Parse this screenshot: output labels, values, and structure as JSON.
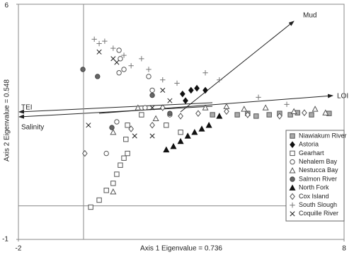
{
  "chart_data": {
    "type": "scatter",
    "x_label": "Axis 1 Eigenvalue = 0.736",
    "y_label": "Axis 2 Eigenvalue = 0.548",
    "xlim": [
      -2,
      8
    ],
    "ylim": [
      -1,
      6
    ],
    "xticks": [
      -2,
      8
    ],
    "yticks": [
      -1,
      6
    ],
    "zero_lines": true,
    "legend": "right",
    "annotations": [
      "Mud",
      "LOI",
      "TEI",
      "Salinity"
    ],
    "series": [
      {
        "name": "Niawiakum River",
        "marker": "square",
        "color": "#555",
        "fill": "#aaa",
        "x": [
          3.96,
          4.72,
          5.04,
          5.3,
          5.7,
          6.02,
          6.35,
          6.57,
          7.0,
          7.54
        ],
        "values": [
          2.71,
          2.71,
          2.75,
          2.67,
          2.71,
          2.75,
          2.71,
          2.77,
          2.71,
          2.75
        ]
      },
      {
        "name": "Astoria",
        "marker": "diamond",
        "color": "#111",
        "fill": "#111",
        "x": [
          3.3,
          3.48,
          3.74,
          3.04,
          3.13
        ],
        "values": [
          3.44,
          3.5,
          3.44,
          3.33,
          3.13
        ]
      },
      {
        "name": "Gearhart",
        "marker": "square",
        "color": "#555",
        "fill": "#fff",
        "x": [
          0.22,
          0.48,
          0.7,
          0.91,
          1.02,
          1.13,
          1.24,
          1.35,
          1.3,
          1.35,
          1.78,
          2.54,
          2.98
        ],
        "values": [
          -0.04,
          0.17,
          0.46,
          0.67,
          0.94,
          1.21,
          1.42,
          1.56,
          1.98,
          2.4,
          2.71,
          2.4,
          2.19
        ]
      },
      {
        "name": "Nehalem Bay",
        "marker": "circle",
        "color": "#555",
        "fill": "#fff",
        "x": [
          1.13,
          1.24,
          1.09,
          1.09,
          0.7,
          1.02,
          2.0,
          2.11,
          1.89,
          2.65
        ],
        "values": [
          4.38,
          4.06,
          3.96,
          4.63,
          1.56,
          2.5,
          3.85,
          3.44,
          2.92,
          2.71
        ]
      },
      {
        "name": "Nestucca Bay",
        "marker": "triangle",
        "color": "#555",
        "fill": "#fff",
        "x": [
          0.91,
          0.91,
          1.67,
          2.22,
          3.74,
          4.39,
          4.93,
          5.59,
          6.46,
          7.11,
          7.43
        ],
        "values": [
          0.42,
          2.19,
          2.92,
          2.6,
          2.92,
          2.96,
          2.88,
          2.92,
          2.81,
          2.88,
          2.77
        ]
      },
      {
        "name": "Salmon River",
        "marker": "circle",
        "color": "#444",
        "fill": "#666",
        "x": [
          -0.02,
          0.43,
          0.87,
          2.11,
          2.65
        ],
        "values": [
          4.06,
          3.85,
          2.33,
          3.29,
          2.75
        ]
      },
      {
        "name": "North Fork",
        "marker": "triangle",
        "color": "#111",
        "fill": "#111",
        "x": [
          2.54,
          2.76,
          2.98,
          3.2,
          3.41,
          3.63,
          3.85,
          4.17
        ],
        "values": [
          1.67,
          1.77,
          1.92,
          2.08,
          2.19,
          2.29,
          2.4,
          2.67
        ]
      },
      {
        "name": "Cox Island",
        "marker": "diamond",
        "color": "#555",
        "fill": "#fff",
        "x": [
          0.04,
          1.46,
          2.11,
          2.43,
          2.98,
          3.52,
          4.39,
          5.04,
          6.02,
          6.78
        ],
        "values": [
          1.56,
          2.29,
          2.4,
          2.92,
          2.67,
          2.75,
          2.81,
          2.71,
          2.67,
          2.77
        ]
      },
      {
        "name": "South Slough",
        "marker": "plus",
        "color": "#777",
        "fill": "none",
        "x": [
          0.33,
          0.48,
          0.65,
          0.91,
          1.24,
          1.46,
          1.78,
          2.0,
          2.43,
          2.87,
          3.74,
          4.17,
          5.37,
          6.24
        ],
        "values": [
          4.96,
          4.83,
          4.9,
          4.69,
          4.48,
          4.17,
          4.38,
          4.06,
          3.75,
          3.65,
          3.96,
          3.75,
          3.23,
          3.02
        ]
      },
      {
        "name": "Coquille River",
        "marker": "x",
        "color": "#222",
        "fill": "none",
        "x": [
          0.48,
          0.91,
          1.02,
          2.43,
          2.65,
          2.11,
          0.15,
          1.57,
          2.11
        ],
        "values": [
          4.58,
          4.38,
          4.27,
          3.44,
          3.13,
          2.92,
          2.4,
          2.08,
          2.08
        ]
      }
    ]
  }
}
